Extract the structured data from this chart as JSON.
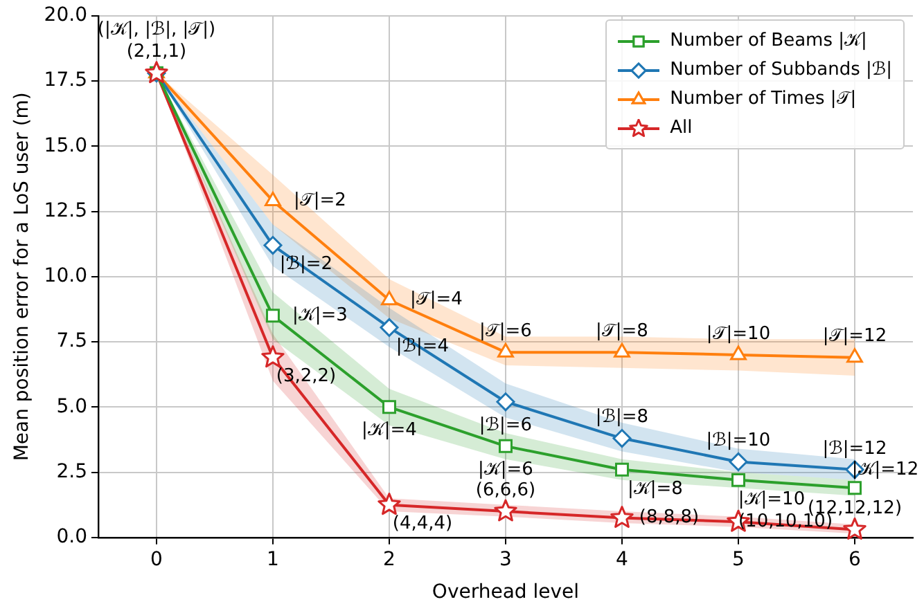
{
  "chart_data": {
    "type": "line",
    "xlabel": "Overhead level",
    "ylabel": "Mean position error for a LoS user (m)",
    "x": [
      0,
      1,
      2,
      3,
      4,
      5,
      6
    ],
    "xlim": [
      -0.5,
      6.5
    ],
    "xticks": [
      0,
      1,
      2,
      3,
      4,
      5,
      6
    ],
    "ylim": [
      0,
      20
    ],
    "yticks": [
      {
        "value": 0,
        "label": "0.0"
      },
      {
        "value": 2.5,
        "label": "2.5"
      },
      {
        "value": 5,
        "label": "5.0"
      },
      {
        "value": 7.5,
        "label": "7.5"
      },
      {
        "value": 10,
        "label": "10.0"
      },
      {
        "value": 12.5,
        "label": "12.5"
      },
      {
        "value": 15,
        "label": "15.0"
      },
      {
        "value": 17.5,
        "label": "17.5"
      },
      {
        "value": 20,
        "label": "20.0"
      }
    ],
    "grid": true,
    "legend": "top right",
    "line_style": "solid",
    "series": [
      {
        "name": "Number of Beams |𝒦|",
        "color": "#2ca02c",
        "marker": "square",
        "values": [
          17.8,
          8.5,
          5.0,
          3.5,
          2.6,
          2.2,
          1.9
        ],
        "lower": [
          17.8,
          7.6,
          4.3,
          3.0,
          2.2,
          1.9,
          1.6
        ],
        "upper": [
          17.8,
          9.4,
          5.7,
          4.0,
          3.0,
          2.5,
          2.2
        ]
      },
      {
        "name": "Number of Subbands |ℬ|",
        "color": "#1f77b4",
        "marker": "diamond",
        "values": [
          17.8,
          11.2,
          8.05,
          5.2,
          3.8,
          2.9,
          2.6
        ],
        "lower": [
          17.8,
          10.4,
          7.3,
          4.6,
          3.3,
          2.5,
          2.2
        ],
        "upper": [
          17.8,
          12.0,
          8.8,
          5.9,
          4.4,
          3.4,
          3.0
        ]
      },
      {
        "name": "Number of Times |𝒯|",
        "color": "#ff7f0e",
        "marker": "triangle",
        "values": [
          17.8,
          12.9,
          9.1,
          7.1,
          7.1,
          7.0,
          6.9
        ],
        "lower": [
          17.8,
          12.0,
          8.4,
          6.6,
          6.5,
          6.4,
          6.2
        ],
        "upper": [
          17.8,
          13.9,
          9.9,
          7.7,
          7.7,
          7.6,
          7.6
        ]
      },
      {
        "name": "All",
        "color": "#d62728",
        "marker": "star",
        "values": [
          17.8,
          6.9,
          1.25,
          1.0,
          0.75,
          0.6,
          0.3
        ],
        "lower": [
          17.8,
          6.0,
          1.0,
          0.8,
          0.55,
          0.4,
          0.15
        ],
        "upper": [
          17.8,
          7.8,
          1.5,
          1.25,
          1.0,
          0.8,
          0.5
        ]
      }
    ],
    "annotations": [
      "(|𝒦|, |ℬ|, |𝒯|)",
      {
        "text": "(2,1,1)",
        "x": 0,
        "y": 17.8
      },
      {
        "text": "|𝒯|=2",
        "x": 1,
        "y": 12.9
      },
      {
        "text": "|ℬ|=2",
        "x": 1,
        "y": 11.2
      },
      {
        "text": "|𝒦|=3",
        "x": 1,
        "y": 8.5
      },
      {
        "text": "(3,2,2)",
        "x": 1,
        "y": 6.9
      },
      {
        "text": "|𝒯|=4",
        "x": 2,
        "y": 9.1
      },
      {
        "text": "|ℬ|=4",
        "x": 2,
        "y": 8.05
      },
      {
        "text": "|𝒦|=4",
        "x": 2,
        "y": 5.0
      },
      {
        "text": "(4,4,4)",
        "x": 2,
        "y": 1.25
      },
      {
        "text": "|𝒯|=6",
        "x": 3,
        "y": 7.1
      },
      {
        "text": "|ℬ|=6",
        "x": 3,
        "y": 5.2
      },
      {
        "text": "|𝒦|=6",
        "x": 3,
        "y": 3.5
      },
      {
        "text": "(6,6,6)",
        "x": 3,
        "y": 1.0
      },
      {
        "text": "|𝒯|=8",
        "x": 4,
        "y": 7.1
      },
      {
        "text": "|ℬ|=8",
        "x": 4,
        "y": 3.8
      },
      {
        "text": "|𝒦|=8",
        "x": 4,
        "y": 2.6
      },
      {
        "text": "(8,8,8)",
        "x": 4,
        "y": 0.75
      },
      {
        "text": "|𝒯|=10",
        "x": 5,
        "y": 7.0
      },
      {
        "text": "|ℬ|=10",
        "x": 5,
        "y": 2.9
      },
      {
        "text": "|𝒦|=10",
        "x": 5,
        "y": 2.2
      },
      {
        "text": "(10,10,10)",
        "x": 5,
        "y": 0.6
      },
      {
        "text": "|𝒯|=12",
        "x": 6,
        "y": 6.9
      },
      {
        "text": "|ℬ|=12",
        "x": 6,
        "y": 2.6
      },
      {
        "text": "|𝒦|=12",
        "x": 6,
        "y": 1.9
      },
      {
        "text": "(12,12,12)",
        "x": 6,
        "y": 0.3
      }
    ]
  }
}
